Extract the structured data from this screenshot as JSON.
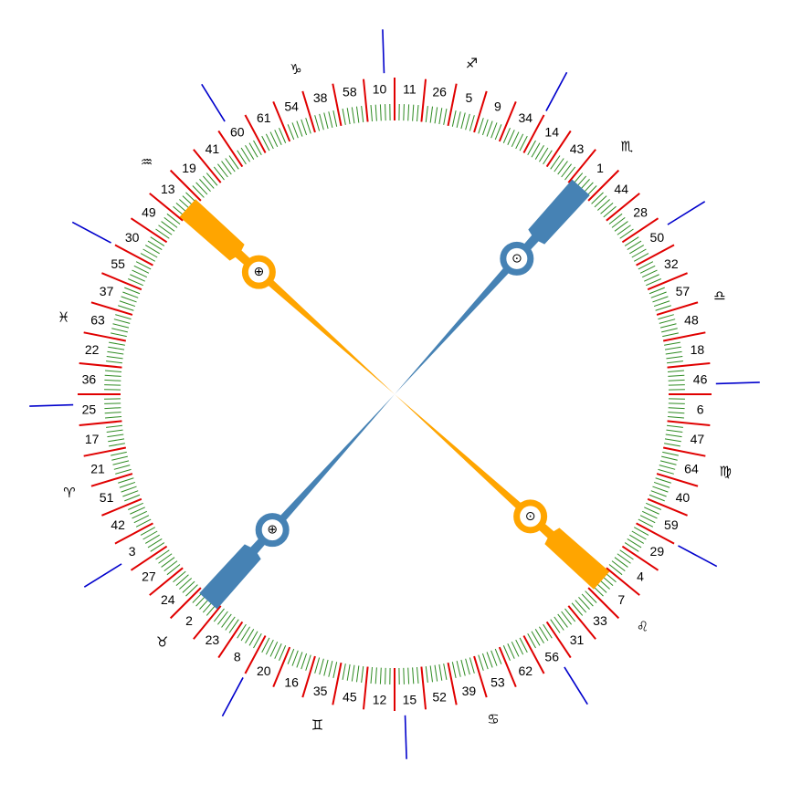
{
  "gates": [
    "10",
    "11",
    "26",
    "5",
    "9",
    "34",
    "14",
    "43",
    "1",
    "44",
    "28",
    "50",
    "32",
    "57",
    "48",
    "18",
    "46",
    "6",
    "47",
    "64",
    "40",
    "59",
    "29",
    "4",
    "7",
    "33",
    "31",
    "56",
    "62",
    "53",
    "39",
    "52",
    "15",
    "12",
    "45",
    "35",
    "16",
    "20",
    "8",
    "23",
    "2",
    "24",
    "27",
    "3",
    "42",
    "51",
    "21",
    "17",
    "25",
    "36",
    "22",
    "63",
    "37",
    "55",
    "30",
    "49",
    "13",
    "19",
    "41",
    "60",
    "61",
    "54",
    "38",
    "58"
  ],
  "signs": [
    "♐︎",
    "♏︎",
    "♎︎",
    "♍︎",
    "♌︎",
    "♋︎",
    "♊︎",
    "♉︎",
    "♈︎",
    "♓︎",
    "♒︎",
    "♑︎"
  ],
  "markers": [
    {
      "symbol": "⊙",
      "color": "#4682b4"
    },
    {
      "symbol": "⊙",
      "color": "#ffa500"
    },
    {
      "symbol": "⊕",
      "color": "#4682b4"
    },
    {
      "symbol": "⊕",
      "color": "#ffa500"
    }
  ]
}
